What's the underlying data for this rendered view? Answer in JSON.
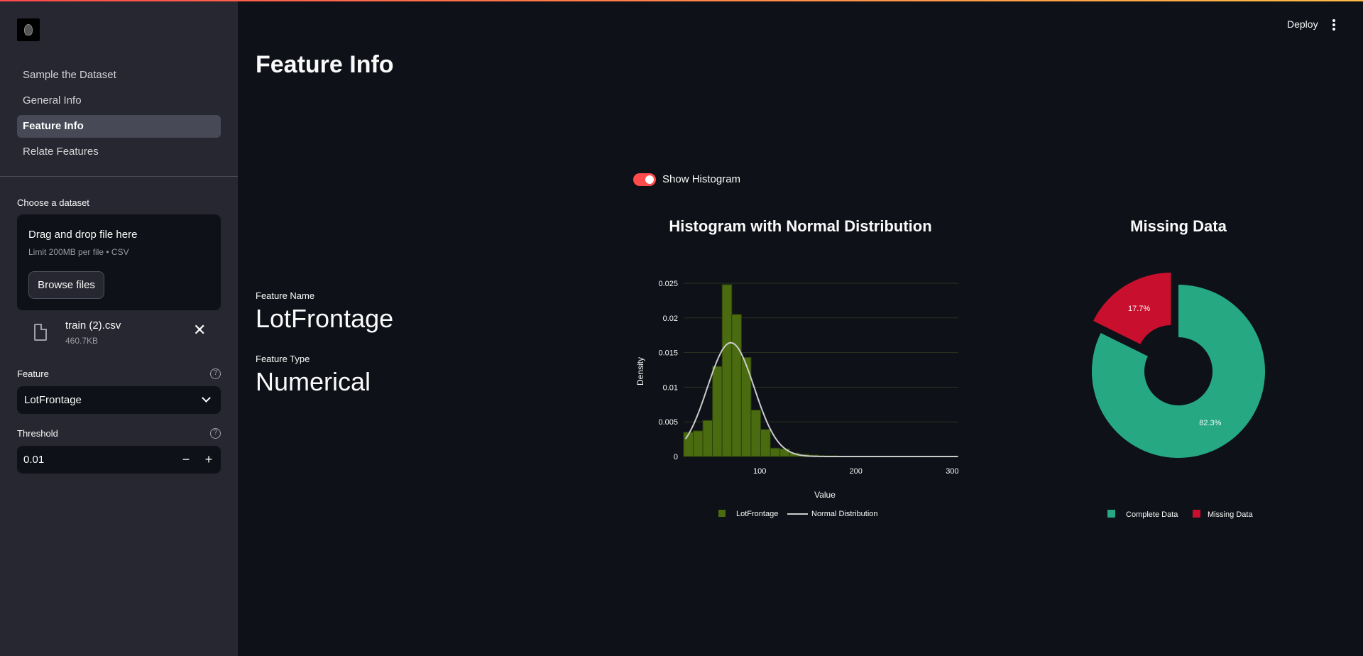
{
  "sidebar": {
    "nav": [
      {
        "label": "Sample the Dataset",
        "active": false
      },
      {
        "label": "General Info",
        "active": false
      },
      {
        "label": "Feature Info",
        "active": true
      },
      {
        "label": "Relate Features",
        "active": false
      }
    ],
    "dataset_label": "Choose a dataset",
    "uploader": {
      "title": "Drag and drop file here",
      "limit": "Limit 200MB per file • CSV",
      "browse_label": "Browse files"
    },
    "file": {
      "name": "train (2).csv",
      "size": "460.7KB"
    },
    "feature_label": "Feature",
    "feature_value": "LotFrontage",
    "threshold_label": "Threshold",
    "threshold_value": "0.01"
  },
  "header": {
    "deploy_label": "Deploy"
  },
  "main": {
    "title": "Feature Info",
    "feature_name_label": "Feature Name",
    "feature_name": "LotFrontage",
    "feature_type_label": "Feature Type",
    "feature_type": "Numerical",
    "toggle_label": "Show Histogram",
    "toggle_on": true
  },
  "colors": {
    "accent": "#ff4b4b",
    "histogram": "#4a6b0f",
    "normal_line": "#cccccc",
    "complete": "#26a882",
    "missing": "#c8102e"
  },
  "chart_data": [
    {
      "type": "bar",
      "title": "Histogram with Normal Distribution",
      "xlabel": "Value",
      "ylabel": "Density",
      "xlim": [
        21,
        313
      ],
      "ylim": [
        0,
        0.025
      ],
      "xticks": [
        "100",
        "200",
        "300"
      ],
      "yticks": [
        "0",
        "0.005",
        "0.01",
        "0.015",
        "0.02",
        "0.025"
      ],
      "bin_width": 10,
      "bins_x": [
        26,
        36,
        46,
        56,
        66,
        76,
        86,
        96,
        106,
        116,
        126,
        136,
        146,
        156,
        166,
        176,
        186,
        196,
        206,
        216,
        226,
        236,
        246,
        256,
        266,
        276,
        286,
        296,
        306,
        313
      ],
      "bins_density": [
        0.0035,
        0.0037,
        0.0052,
        0.013,
        0.0248,
        0.0205,
        0.0143,
        0.0067,
        0.0039,
        0.0012,
        0.0011,
        0.0005,
        0.0003,
        0.0002,
        0.0001,
        0.0001,
        0,
        0,
        0,
        0,
        0,
        0,
        0,
        0,
        0,
        0,
        0,
        0,
        0,
        0.0001
      ],
      "normal": {
        "mean": 70.0,
        "std": 24.3
      },
      "legend": [
        "LotFrontage",
        "Normal Distribution"
      ],
      "legend_position": "bottom"
    },
    {
      "type": "pie",
      "title": "Missing Data",
      "labels": [
        "Complete Data",
        "Missing Data"
      ],
      "values": [
        82.3,
        17.7
      ],
      "value_labels": [
        "82.3%",
        "17.7%"
      ],
      "legend_position": "bottom"
    }
  ]
}
